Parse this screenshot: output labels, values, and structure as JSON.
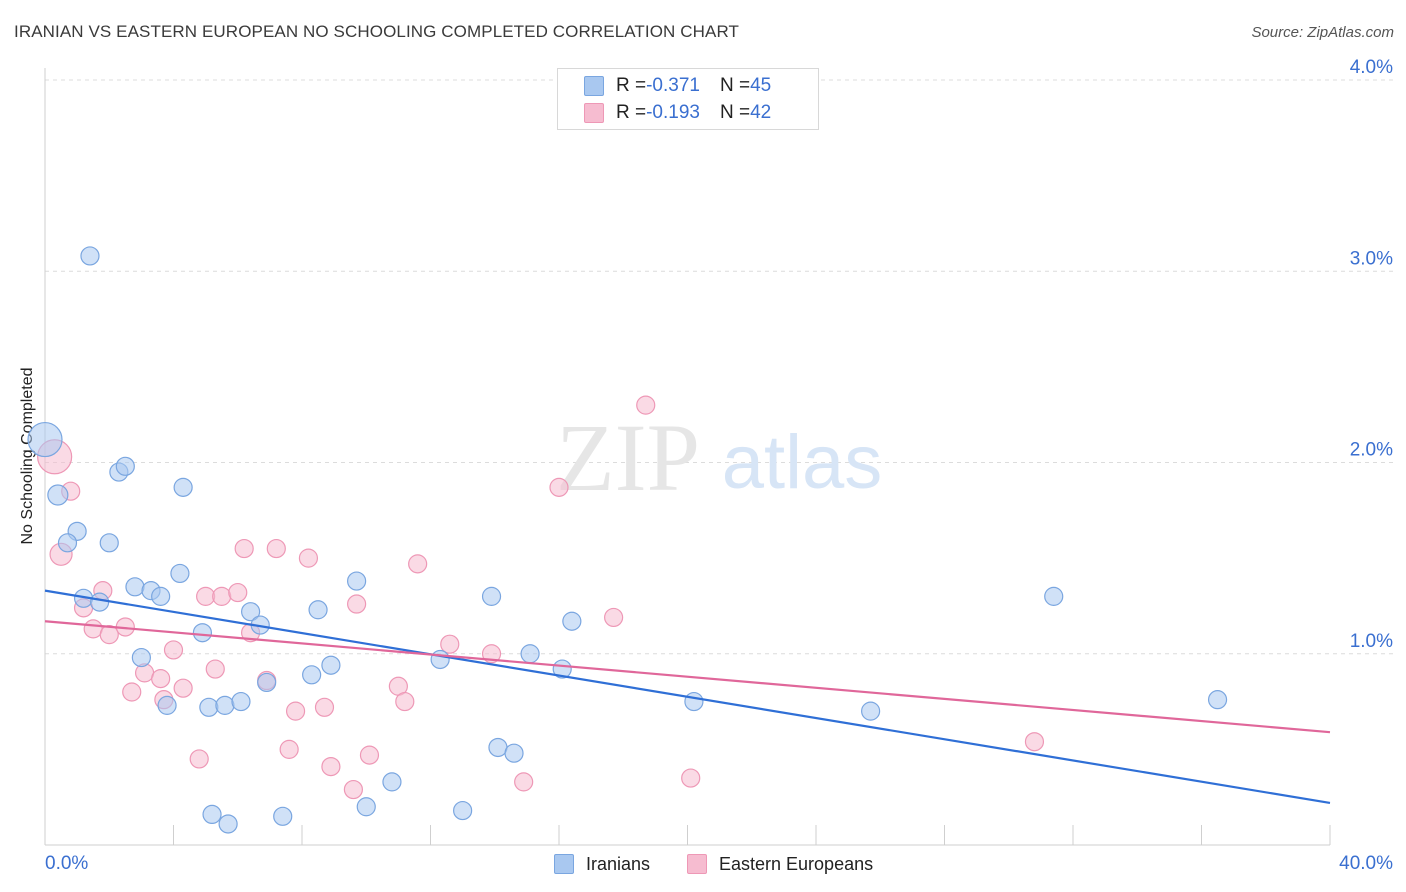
{
  "title": "IRANIAN VS EASTERN EUROPEAN NO SCHOOLING COMPLETED CORRELATION CHART",
  "source": "Source: ZipAtlas.com",
  "watermark": {
    "part1": "ZIP",
    "part2": "atlas"
  },
  "legend_top": {
    "rows": [
      {
        "r_label": "R = ",
        "r_value": "-0.371",
        "n_label": "N = ",
        "n_value": "45"
      },
      {
        "r_label": "R = ",
        "r_value": "-0.193",
        "n_label": "N = ",
        "n_value": "42"
      }
    ]
  },
  "legend_bottom": {
    "iranians": "Iranians",
    "eastern": "Eastern Europeans"
  },
  "colors": {
    "iranians_fill": "#a9c8f0",
    "iranians_stroke": "#7aa6e0",
    "iranians_line": "#2f6fd6",
    "eastern_fill": "#f6bcd0",
    "eastern_stroke": "#ee98b6",
    "eastern_line": "#e0679a",
    "tick_label": "#3a6fd0",
    "grid": "#dcdcdc"
  },
  "chart_data": {
    "type": "scatter",
    "title": "IRANIAN VS EASTERN EUROPEAN NO SCHOOLING COMPLETED CORRELATION CHART",
    "xlabel": "",
    "ylabel": "No Schooling Completed",
    "xlim": [
      0,
      40
    ],
    "ylim": [
      0,
      4.0
    ],
    "x_tick_labels": [
      "0.0%",
      "40.0%"
    ],
    "y_ticks": [
      1.0,
      2.0,
      3.0,
      4.0
    ],
    "y_tick_labels": [
      "1.0%",
      "2.0%",
      "3.0%",
      "4.0%"
    ],
    "grid": "horizontal dashed",
    "legend_position": "top-center and bottom",
    "series": [
      {
        "name": "Iranians",
        "r": -0.371,
        "n": 45,
        "trend": {
          "x": [
            0,
            40
          ],
          "y": [
            1.33,
            0.22
          ]
        },
        "points": [
          [
            0.0,
            2.12,
            16
          ],
          [
            0.4,
            1.83,
            9
          ],
          [
            1.4,
            3.08,
            8
          ],
          [
            2.3,
            1.95,
            8
          ],
          [
            2.5,
            1.98,
            8
          ],
          [
            1.0,
            1.64,
            8
          ],
          [
            0.7,
            1.58,
            8
          ],
          [
            2.0,
            1.58,
            8
          ],
          [
            4.3,
            1.87,
            8
          ],
          [
            4.2,
            1.42,
            8
          ],
          [
            2.8,
            1.35,
            8
          ],
          [
            3.3,
            1.33,
            8
          ],
          [
            3.6,
            1.3,
            8
          ],
          [
            1.2,
            1.29,
            8
          ],
          [
            1.7,
            1.27,
            8
          ],
          [
            6.4,
            1.22,
            8
          ],
          [
            6.7,
            1.15,
            8
          ],
          [
            8.5,
            1.23,
            8
          ],
          [
            9.7,
            1.38,
            8
          ],
          [
            13.9,
            1.3,
            8
          ],
          [
            16.4,
            1.17,
            8
          ],
          [
            31.4,
            1.3,
            8
          ],
          [
            4.9,
            1.11,
            8
          ],
          [
            3.0,
            0.98,
            8
          ],
          [
            6.9,
            0.85,
            8
          ],
          [
            8.9,
            0.94,
            8
          ],
          [
            8.3,
            0.89,
            8
          ],
          [
            12.3,
            0.97,
            8
          ],
          [
            15.1,
            1.0,
            8
          ],
          [
            16.1,
            0.92,
            8
          ],
          [
            3.8,
            0.73,
            8
          ],
          [
            5.1,
            0.72,
            8
          ],
          [
            5.6,
            0.73,
            8
          ],
          [
            6.1,
            0.75,
            8
          ],
          [
            20.2,
            0.75,
            8
          ],
          [
            25.7,
            0.7,
            8
          ],
          [
            36.5,
            0.76,
            8
          ],
          [
            14.1,
            0.51,
            8
          ],
          [
            14.6,
            0.48,
            8
          ],
          [
            10.8,
            0.33,
            8
          ],
          [
            5.2,
            0.16,
            8
          ],
          [
            5.7,
            0.11,
            8
          ],
          [
            7.4,
            0.15,
            8
          ],
          [
            10.0,
            0.2,
            8
          ],
          [
            13.0,
            0.18,
            8
          ]
        ]
      },
      {
        "name": "Eastern Europeans",
        "r": -0.193,
        "n": 42,
        "trend": {
          "x": [
            0,
            40
          ],
          "y": [
            1.17,
            0.59
          ]
        },
        "points": [
          [
            0.3,
            2.03,
            16
          ],
          [
            0.5,
            1.52,
            10
          ],
          [
            0.8,
            1.85,
            8
          ],
          [
            16.0,
            1.87,
            8
          ],
          [
            18.7,
            2.3,
            8
          ],
          [
            6.2,
            1.55,
            8
          ],
          [
            7.2,
            1.55,
            8
          ],
          [
            8.2,
            1.5,
            8
          ],
          [
            11.6,
            1.47,
            8
          ],
          [
            1.8,
            1.33,
            8
          ],
          [
            1.2,
            1.24,
            8
          ],
          [
            5.0,
            1.3,
            8
          ],
          [
            5.5,
            1.3,
            8
          ],
          [
            6.0,
            1.32,
            8
          ],
          [
            9.7,
            1.26,
            8
          ],
          [
            17.7,
            1.19,
            8
          ],
          [
            1.5,
            1.13,
            8
          ],
          [
            2.0,
            1.1,
            8
          ],
          [
            2.5,
            1.14,
            8
          ],
          [
            6.4,
            1.11,
            8
          ],
          [
            4.0,
            1.02,
            8
          ],
          [
            12.6,
            1.05,
            8
          ],
          [
            13.9,
            1.0,
            8
          ],
          [
            5.3,
            0.92,
            8
          ],
          [
            3.1,
            0.9,
            8
          ],
          [
            3.6,
            0.87,
            8
          ],
          [
            6.9,
            0.86,
            8
          ],
          [
            2.7,
            0.8,
            8
          ],
          [
            4.3,
            0.82,
            8
          ],
          [
            11.0,
            0.83,
            8
          ],
          [
            3.7,
            0.76,
            8
          ],
          [
            11.2,
            0.75,
            8
          ],
          [
            7.8,
            0.7,
            8
          ],
          [
            8.7,
            0.72,
            8
          ],
          [
            7.6,
            0.5,
            8
          ],
          [
            10.1,
            0.47,
            8
          ],
          [
            4.8,
            0.45,
            8
          ],
          [
            8.9,
            0.41,
            8
          ],
          [
            14.9,
            0.33,
            8
          ],
          [
            20.1,
            0.35,
            8
          ],
          [
            9.6,
            0.29,
            8
          ],
          [
            30.8,
            0.54,
            8
          ]
        ]
      }
    ]
  }
}
